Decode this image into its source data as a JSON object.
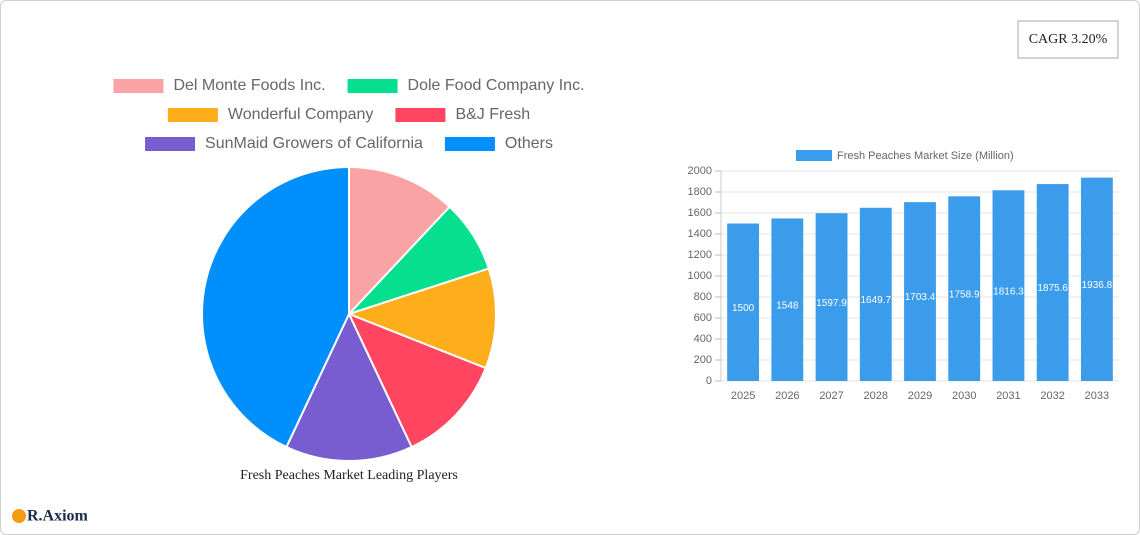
{
  "badge": "CAGR 3.20%",
  "logo": "R.Axiom",
  "chart_data": [
    {
      "type": "pie",
      "title": "Fresh Peaches Market Leading Players",
      "categories": [
        "Del Monte Foods Inc.",
        "Dole Food Company Inc.",
        "Wonderful Company",
        "B&J Fresh",
        "SunMaid Growers of California",
        "Others"
      ],
      "values": [
        12,
        8,
        11,
        12,
        14,
        43
      ],
      "colors": [
        "#f9a3a4",
        "#06e08e",
        "#feae1a",
        "#ff4560",
        "#775dd0",
        "#008ffb"
      ]
    },
    {
      "type": "bar",
      "categories": [
        "2025",
        "2026",
        "2027",
        "2028",
        "2029",
        "2030",
        "2031",
        "2032",
        "2033"
      ],
      "series": [
        {
          "name": "Fresh Peaches Market Size (Million)",
          "color": "#3b9cec",
          "values": [
            1500,
            1548,
            1597.9,
            1649.7,
            1703.4,
            1758.9,
            1816.3,
            1875.6,
            1936.8
          ]
        }
      ],
      "ylim": [
        0,
        2000
      ],
      "yticks": [
        0,
        200,
        400,
        600,
        800,
        1000,
        1200,
        1400,
        1600,
        1800,
        2000
      ],
      "grid": true
    }
  ]
}
